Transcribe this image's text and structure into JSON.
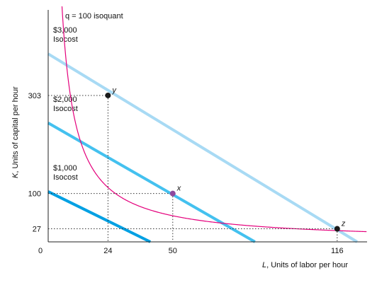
{
  "chart_data": {
    "type": "line",
    "xlabel_var": "L",
    "xlabel_text": ", Units of labor per hour",
    "ylabel_var": "K",
    "ylabel_text": ", Units of capital per hour",
    "origin_label": "0",
    "xlim": [
      0,
      128
    ],
    "ylim": [
      0,
      480
    ],
    "x_ticks": [
      24,
      50,
      116
    ],
    "y_ticks": [
      27,
      100,
      303
    ],
    "isoquant": {
      "label": "q = 100 isoquant",
      "k_times_l": 2700,
      "color": "#e4007c"
    },
    "isocosts": [
      {
        "label": "$1,000",
        "sub": "Isocost",
        "k_intercept": 104,
        "l_intercept": 41,
        "color": "#00a0e3"
      },
      {
        "label": "$2,000",
        "sub": "Isocost",
        "k_intercept": 246,
        "l_intercept": 83,
        "color": "#44c1ef"
      },
      {
        "label": "$3,000",
        "sub": "Isocost",
        "k_intercept": 389,
        "l_intercept": 124,
        "color": "#a8daf4"
      }
    ],
    "points": [
      {
        "name": "y",
        "l": 24,
        "k": 303,
        "color": "#1a1a1a"
      },
      {
        "name": "x",
        "l": 50,
        "k": 100,
        "color": "#8e4a9e"
      },
      {
        "name": "z",
        "l": 116,
        "k": 27,
        "color": "#1a1a1a"
      }
    ]
  }
}
